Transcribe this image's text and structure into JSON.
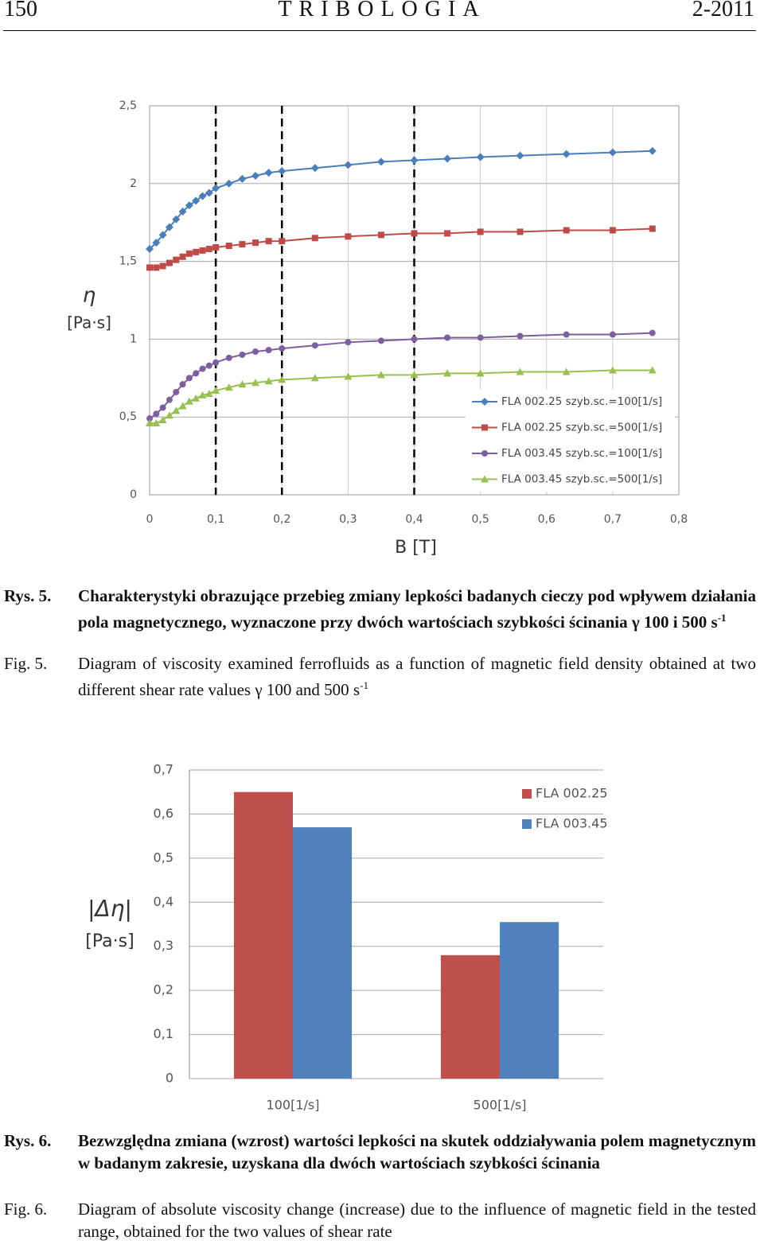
{
  "header": {
    "page": "150",
    "journal": "TRIBOLOGIA",
    "issue": "2-2011"
  },
  "chart_data": [
    {
      "type": "line",
      "x": [
        0,
        0.01,
        0.02,
        0.03,
        0.04,
        0.05,
        0.06,
        0.07,
        0.08,
        0.09,
        0.1,
        0.12,
        0.14,
        0.16,
        0.18,
        0.2,
        0.25,
        0.3,
        0.35,
        0.4,
        0.45,
        0.5,
        0.56,
        0.63,
        0.7,
        0.76
      ],
      "series": [
        {
          "name": "FLA 002.25 szyb.sc.=100[1/s]",
          "color": "#4a7ebb",
          "marker": "diamond",
          "values": [
            1.58,
            1.62,
            1.67,
            1.72,
            1.77,
            1.82,
            1.86,
            1.89,
            1.92,
            1.94,
            1.97,
            2.0,
            2.03,
            2.05,
            2.07,
            2.08,
            2.1,
            2.12,
            2.14,
            2.15,
            2.16,
            2.17,
            2.18,
            2.19,
            2.2,
            2.21
          ]
        },
        {
          "name": "FLA 002.25 szyb.sc.=500[1/s]",
          "color": "#be4b48",
          "marker": "square",
          "values": [
            1.46,
            1.46,
            1.47,
            1.49,
            1.51,
            1.53,
            1.55,
            1.56,
            1.57,
            1.58,
            1.59,
            1.6,
            1.61,
            1.62,
            1.63,
            1.63,
            1.65,
            1.66,
            1.67,
            1.68,
            1.68,
            1.69,
            1.69,
            1.7,
            1.7,
            1.71
          ]
        },
        {
          "name": "FLA 003.45 szyb.sc.=100[1/s]",
          "color": "#7d5fa0",
          "marker": "circle",
          "values": [
            0.49,
            0.52,
            0.56,
            0.61,
            0.66,
            0.71,
            0.75,
            0.78,
            0.81,
            0.83,
            0.85,
            0.88,
            0.9,
            0.92,
            0.93,
            0.94,
            0.96,
            0.98,
            0.99,
            1.0,
            1.01,
            1.01,
            1.02,
            1.03,
            1.03,
            1.04
          ]
        },
        {
          "name": "FLA 003.45 szyb.sc.=500[1/s]",
          "color": "#98c050",
          "marker": "triangle",
          "values": [
            0.46,
            0.46,
            0.48,
            0.51,
            0.54,
            0.57,
            0.6,
            0.62,
            0.64,
            0.65,
            0.67,
            0.69,
            0.71,
            0.72,
            0.73,
            0.74,
            0.75,
            0.76,
            0.77,
            0.77,
            0.78,
            0.78,
            0.79,
            0.79,
            0.8,
            0.8
          ]
        }
      ],
      "xlim": [
        0,
        0.8
      ],
      "xticks": [
        0,
        {
          "value": 0.1,
          "label": "0,1"
        },
        {
          "value": 0.2,
          "label": "0,2"
        },
        {
          "value": 0.3,
          "label": "0,3"
        },
        {
          "value": 0.4,
          "label": "0,4"
        },
        {
          "value": 0.5,
          "label": "0,5"
        },
        {
          "value": 0.6,
          "label": "0,6"
        },
        {
          "value": 0.7,
          "label": "0,7"
        },
        {
          "value": 0.8,
          "label": "0,8"
        }
      ],
      "ylim": [
        0,
        2.5
      ],
      "yticks": [
        0,
        {
          "value": 0.5,
          "label": "0,5"
        },
        1,
        {
          "value": 1.5,
          "label": "1,5"
        },
        2,
        {
          "value": 2.5,
          "label": "2,5"
        }
      ],
      "xlabel": "B [T]",
      "ylabel": [
        "η",
        "[Pa·s]"
      ],
      "vlines": [
        0.1,
        0.2,
        0.4
      ],
      "grid": true,
      "legend": "lower-right"
    },
    {
      "type": "bar",
      "categories": [
        "100[1/s]",
        "500[1/s]"
      ],
      "series": [
        {
          "name": "FLA 002.25",
          "color": "#c0504d",
          "values": [
            0.65,
            0.28
          ]
        },
        {
          "name": "FLA 003.45",
          "color": "#4f81bd",
          "values": [
            0.57,
            0.355
          ]
        }
      ],
      "ylim": [
        0,
        0.7
      ],
      "yticks": [
        0,
        {
          "value": 0.1,
          "label": "0,1"
        },
        {
          "value": 0.2,
          "label": "0,2"
        },
        {
          "value": 0.3,
          "label": "0,3"
        },
        {
          "value": 0.4,
          "label": "0,4"
        },
        {
          "value": 0.5,
          "label": "0,5"
        },
        {
          "value": 0.6,
          "label": "0,6"
        },
        {
          "value": 0.7,
          "label": "0,7"
        }
      ],
      "ylabel": [
        "|Δη|",
        "[Pa·s]"
      ],
      "grid": true,
      "legend": "upper-right"
    }
  ],
  "captions": [
    {
      "label": "Rys. 5.",
      "text": "Charakterystyki obrazujące przebieg zmiany lepkości badanych cieczy pod wpływem działania pola magnetycznego, wyznaczone przy dwóch wartościach szybkości ścinania γ 100 i 500 s",
      "sup": "-1"
    },
    {
      "label": "Fig. 5.",
      "text": "Diagram of viscosity examined ferrofluids as a function of magnetic field density obtained at two different shear rate values γ 100 and 500 s",
      "sup": "-1"
    },
    {
      "label": "Rys. 6.",
      "text": "Bezwzględna zmiana (wzrost) wartości lepkości na skutek oddziaływania polem magnetycznym w badanym zakresie, uzyskana dla dwóch wartościach szybkości ścinania"
    },
    {
      "label": "Fig. 6.",
      "text": "Diagram of absolute viscosity change (increase) due to the influence of magnetic field in the tested range, obtained for the two values of shear rate"
    }
  ]
}
